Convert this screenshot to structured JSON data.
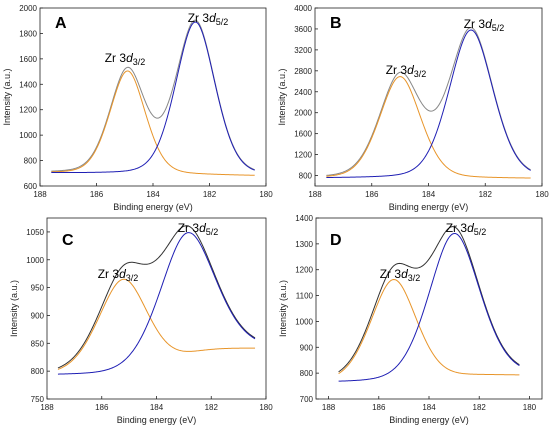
{
  "figure": {
    "x_tick_labels": [
      "188",
      "186",
      "184",
      "182",
      "180"
    ],
    "xlabel": "Binding energy (eV)",
    "ylabel": "Intensity (a.u.)"
  },
  "chart_data": [
    {
      "type": "line",
      "panel": "A",
      "xlabel": "Binding energy (eV)",
      "ylabel": "Intensity (a.u.)",
      "xlim": [
        188,
        180
      ],
      "ylim": [
        600,
        2000
      ],
      "y_ticks": [
        600,
        800,
        1000,
        1200,
        1400,
        1600,
        1800,
        2000
      ],
      "x_ticks": [
        188,
        186,
        184,
        182,
        180
      ],
      "x_axis_reversed": true,
      "grid": false,
      "background": 690,
      "peaks": [
        {
          "label": "Zr 3d3/2",
          "center": 184.9,
          "max": 1505,
          "color": "#e8952a"
        },
        {
          "label": "Zr 3d5/2",
          "center": 182.5,
          "max": 1890,
          "color": "#1f1fb4"
        }
      ],
      "series": [
        {
          "color": "#e8952a",
          "component": "3d3/2"
        },
        {
          "color": "#1f1fb4",
          "component": "3d5/2"
        },
        {
          "color": "#888888",
          "component": "envelope"
        }
      ]
    },
    {
      "type": "line",
      "panel": "B",
      "xlabel": "Binding energy (eV)",
      "ylabel": "Intensity (a.u.)",
      "xlim": [
        188,
        180
      ],
      "ylim": [
        600,
        4000
      ],
      "y_ticks": [
        800,
        1200,
        1600,
        2000,
        2400,
        2800,
        3200,
        3600,
        4000
      ],
      "x_ticks": [
        188,
        186,
        184,
        182,
        180
      ],
      "x_axis_reversed": true,
      "grid": false,
      "background": 740,
      "peaks": [
        {
          "label": "Zr 3d3/2",
          "center": 185.0,
          "max": 2690,
          "color": "#e8952a"
        },
        {
          "label": "Zr 3d5/2",
          "center": 182.5,
          "max": 3580,
          "color": "#1f1fb4"
        }
      ],
      "series": [
        {
          "color": "#e8952a",
          "component": "3d3/2"
        },
        {
          "color": "#1f1fb4",
          "component": "3d5/2"
        },
        {
          "color": "#888888",
          "component": "envelope"
        }
      ]
    },
    {
      "type": "line",
      "panel": "C",
      "xlabel": "Binding energy (eV)",
      "ylabel": "Intensity (a.u.)",
      "xlim": [
        188,
        180
      ],
      "ylim": [
        750,
        1075
      ],
      "y_ticks": [
        750,
        800,
        850,
        900,
        950,
        1000,
        1050
      ],
      "x_ticks": [
        188,
        186,
        184,
        182,
        180
      ],
      "x_axis_reversed": true,
      "grid": false,
      "peaks": [
        {
          "label": "Zr 3d3/2",
          "center": 185.2,
          "max": 965,
          "color": "#e8952a"
        },
        {
          "label": "Zr 3d5/2",
          "center": 182.9,
          "max": 1048,
          "color": "#1f1fb4"
        }
      ],
      "series": [
        {
          "color": "#e8952a",
          "component": "3d3/2"
        },
        {
          "color": "#1f1fb4",
          "component": "3d5/2"
        },
        {
          "color": "#333333",
          "component": "envelope"
        }
      ]
    },
    {
      "type": "line",
      "panel": "D",
      "xlabel": "Binding energy (eV)",
      "ylabel": "Intensity (a.u.)",
      "xlim": [
        188.5,
        179.5
      ],
      "ylim": [
        700,
        1400
      ],
      "y_ticks": [
        700,
        800,
        900,
        1000,
        1100,
        1200,
        1300,
        1400
      ],
      "x_ticks": [
        188,
        186,
        184,
        182,
        180
      ],
      "x_axis_reversed": true,
      "grid": false,
      "peaks": [
        {
          "label": "Zr 3d3/2",
          "center": 185.4,
          "max": 1162,
          "color": "#e8952a"
        },
        {
          "label": "Zr 3d5/2",
          "center": 183.0,
          "max": 1340,
          "color": "#1f1fb4"
        }
      ],
      "series": [
        {
          "color": "#e8952a",
          "component": "3d3/2"
        },
        {
          "color": "#1f1fb4",
          "component": "3d5/2"
        },
        {
          "color": "#333333",
          "component": "envelope"
        }
      ]
    }
  ]
}
